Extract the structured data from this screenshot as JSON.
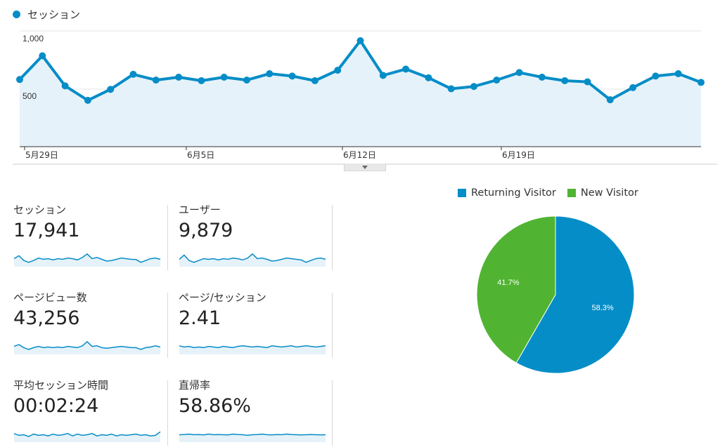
{
  "main_chart": {
    "series_label": "セッション",
    "series_color": "#058dc7",
    "fill_color": "#e6f2f9",
    "y_tick_labels": [
      "1,000",
      "500"
    ],
    "x_tick_labels": [
      "5月29日",
      "6月5日",
      "6月12日",
      "6月19日"
    ]
  },
  "chart_data": {
    "type": "area",
    "series": [
      {
        "name": "セッション",
        "values": [
          580,
          785,
          525,
          400,
          495,
          625,
          575,
          600,
          570,
          600,
          575,
          630,
          610,
          570,
          660,
          915,
          615,
          670,
          595,
          500,
          520,
          575,
          640,
          600,
          570,
          560,
          405,
          510,
          610,
          630,
          555
        ]
      }
    ],
    "ylim": [
      0,
      1100
    ],
    "x_tick_labels": [
      "5月29日",
      "6月5日",
      "6月12日",
      "6月19日"
    ],
    "y_tick_labels": [
      "1,000",
      "500"
    ],
    "grid": true
  },
  "metrics": [
    {
      "label": "セッション",
      "value": "17,941",
      "spark": [
        0.55,
        0.8,
        0.4,
        0.25,
        0.4,
        0.6,
        0.5,
        0.55,
        0.45,
        0.55,
        0.5,
        0.6,
        0.55,
        0.45,
        0.65,
        0.95,
        0.55,
        0.65,
        0.5,
        0.35,
        0.4,
        0.5,
        0.6,
        0.55,
        0.5,
        0.48,
        0.25,
        0.4,
        0.55,
        0.6,
        0.5
      ]
    },
    {
      "label": "ユーザー",
      "value": "9,879",
      "spark": [
        0.5,
        0.85,
        0.4,
        0.25,
        0.4,
        0.55,
        0.5,
        0.55,
        0.45,
        0.55,
        0.5,
        0.6,
        0.55,
        0.45,
        0.6,
        0.95,
        0.55,
        0.6,
        0.5,
        0.35,
        0.4,
        0.5,
        0.6,
        0.55,
        0.5,
        0.45,
        0.25,
        0.4,
        0.55,
        0.6,
        0.5
      ]
    },
    {
      "label": "ページビュー数",
      "value": "43,256",
      "spark": [
        0.55,
        0.7,
        0.45,
        0.3,
        0.45,
        0.55,
        0.45,
        0.5,
        0.45,
        0.5,
        0.45,
        0.55,
        0.5,
        0.45,
        0.6,
        0.95,
        0.55,
        0.6,
        0.45,
        0.4,
        0.45,
        0.5,
        0.55,
        0.5,
        0.45,
        0.45,
        0.3,
        0.45,
        0.5,
        0.6,
        0.5
      ]
    },
    {
      "label": "ページ/セッション",
      "value": "2.41",
      "spark": [
        0.6,
        0.5,
        0.55,
        0.45,
        0.5,
        0.45,
        0.55,
        0.5,
        0.45,
        0.55,
        0.5,
        0.45,
        0.55,
        0.6,
        0.55,
        0.5,
        0.55,
        0.5,
        0.45,
        0.6,
        0.55,
        0.5,
        0.55,
        0.6,
        0.5,
        0.55,
        0.6,
        0.55,
        0.5,
        0.55,
        0.6
      ]
    },
    {
      "label": "平均セッション時間",
      "value": "00:02:24",
      "spark": [
        0.6,
        0.45,
        0.5,
        0.35,
        0.55,
        0.45,
        0.5,
        0.4,
        0.55,
        0.45,
        0.5,
        0.6,
        0.4,
        0.55,
        0.45,
        0.5,
        0.6,
        0.4,
        0.5,
        0.45,
        0.55,
        0.4,
        0.5,
        0.45,
        0.5,
        0.55,
        0.45,
        0.5,
        0.4,
        0.45,
        0.75
      ]
    },
    {
      "label": "直帰率",
      "value": "58.86%",
      "spark": [
        0.5,
        0.52,
        0.55,
        0.5,
        0.52,
        0.48,
        0.55,
        0.5,
        0.52,
        0.5,
        0.48,
        0.55,
        0.52,
        0.5,
        0.45,
        0.5,
        0.52,
        0.55,
        0.5,
        0.48,
        0.52,
        0.5,
        0.55,
        0.52,
        0.5,
        0.48,
        0.5,
        0.52,
        0.5,
        0.48,
        0.5
      ]
    }
  ],
  "pie": {
    "legend": [
      {
        "label": "Returning Visitor",
        "color": "#058dc7"
      },
      {
        "label": "New Visitor",
        "color": "#50b432"
      }
    ],
    "slices": [
      {
        "name": "Returning Visitor",
        "value": 58.3,
        "label": "58.3%",
        "color": "#058dc7"
      },
      {
        "name": "New Visitor",
        "value": 41.7,
        "label": "41.7%",
        "color": "#50b432"
      }
    ]
  }
}
